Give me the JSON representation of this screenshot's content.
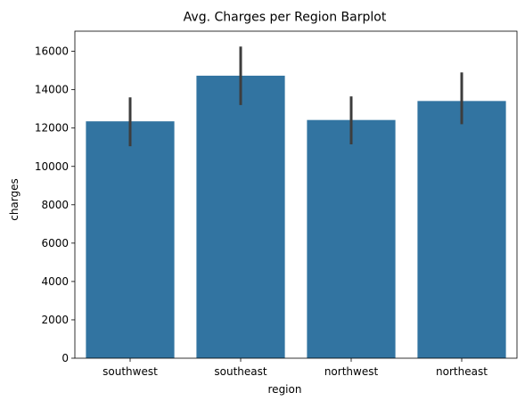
{
  "chart_data": {
    "type": "bar",
    "title": "Avg. Charges per Region Barplot",
    "xlabel": "region",
    "ylabel": "charges",
    "categories": [
      "southwest",
      "southeast",
      "northwest",
      "northeast"
    ],
    "values": [
      12350,
      14730,
      12420,
      13410
    ],
    "error_low": [
      11050,
      13200,
      11150,
      12200
    ],
    "error_high": [
      13600,
      16250,
      13650,
      14900
    ],
    "ylim": [
      0,
      17050
    ],
    "yticks": [
      0,
      2000,
      4000,
      6000,
      8000,
      10000,
      12000,
      14000,
      16000
    ],
    "grid": false,
    "legend": "none",
    "colors": {
      "bar": "#3274a1",
      "error_bar": "#3d3d3d",
      "axis": "#000000"
    }
  }
}
